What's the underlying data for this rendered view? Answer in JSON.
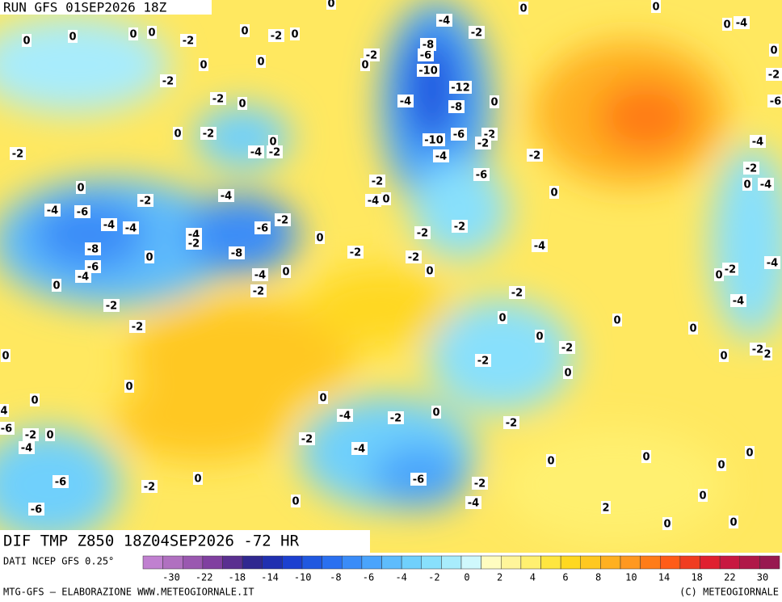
{
  "header": {
    "run": "RUN GFS 01SEP2026 18Z"
  },
  "map_title": "DIF TMP Z850 18Z04SEP2026 -72 HR",
  "legend": {
    "source": "DATI NCEP GFS 0.25°",
    "colors": [
      "#c080d0",
      "#b070c0",
      "#9a58b0",
      "#8040a0",
      "#5a3090",
      "#302890",
      "#2030b0",
      "#1c40d0",
      "#2058e0",
      "#2a70f0",
      "#3a8cf8",
      "#4aa4fc",
      "#5ebcfc",
      "#70d0fc",
      "#88e0fc",
      "#a8ecfc",
      "#cff8fc",
      "#fffcc0",
      "#fff59a",
      "#fff070",
      "#ffe640",
      "#ffd820",
      "#ffc820",
      "#ffb020",
      "#ff9820",
      "#ff7c18",
      "#ff5c18",
      "#f03c20",
      "#e02030",
      "#c81840",
      "#b01848",
      "#981850"
    ],
    "ticks": [
      -30,
      -22,
      -18,
      -14,
      -10,
      -8,
      -6,
      -4,
      -2,
      0,
      2,
      4,
      6,
      8,
      10,
      14,
      18,
      22,
      30
    ]
  },
  "footer": {
    "left": "MTG-GFS — ELABORAZIONE WWW.METEOGIORNALE.IT",
    "right": "(C) METEOGIORNALE"
  },
  "contour_labels": [
    0,
    0,
    0,
    0,
    -2,
    0,
    -2,
    0,
    0,
    0,
    -2,
    -2,
    0,
    0,
    -2,
    0,
    -4,
    -2,
    -2,
    0,
    -2,
    -4,
    -4,
    -6,
    -4,
    -4,
    -4,
    -2,
    -2,
    -6,
    -8,
    -6,
    -4,
    0,
    -8,
    -4,
    0,
    0,
    -2,
    -2,
    -2,
    0,
    0,
    0,
    4,
    -6,
    -2,
    0,
    -4,
    -6,
    -6,
    -2,
    0,
    0,
    -2,
    0,
    -4,
    -4,
    -2,
    0,
    -6,
    -2,
    -4,
    0,
    2,
    0,
    0,
    0,
    0,
    0,
    0,
    -2,
    -2,
    0,
    0,
    -2,
    0,
    -2,
    -4,
    0,
    -2,
    -2,
    0,
    0,
    -2,
    -4,
    -2,
    -2,
    -4,
    -10,
    -6,
    -2,
    -2,
    -6,
    -2,
    0,
    -4,
    -10,
    -6,
    -8,
    -12,
    -8,
    0,
    -4,
    -2,
    -2,
    0,
    0,
    0,
    0,
    -4,
    0,
    -2,
    -6,
    -4,
    -2,
    -4,
    0,
    -4,
    -2,
    0,
    -4,
    0,
    0,
    0,
    -2,
    2,
    0
  ]
}
